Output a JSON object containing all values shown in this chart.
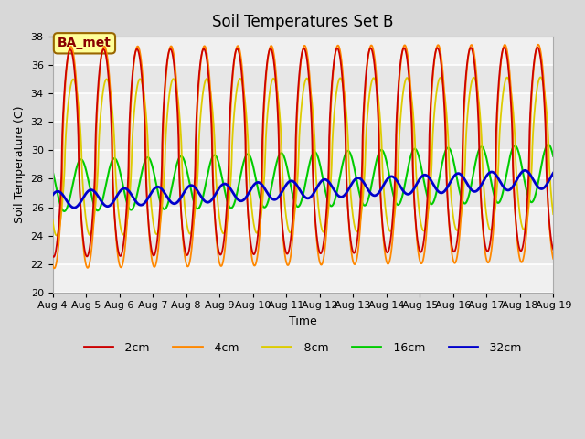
{
  "title": "Soil Temperatures Set B",
  "xlabel": "Time",
  "ylabel": "Soil Temperature (C)",
  "ylim": [
    20,
    38
  ],
  "xlim": [
    0,
    15
  ],
  "x_tick_labels": [
    "Aug 4",
    "Aug 5",
    "Aug 6",
    "Aug 7",
    "Aug 8",
    "Aug 9",
    "Aug 10",
    "Aug 11",
    "Aug 12",
    "Aug 13",
    "Aug 14",
    "Aug 15",
    "Aug 16",
    "Aug 17",
    "Aug 18",
    "Aug 19"
  ],
  "legend_labels": [
    "-2cm",
    "-4cm",
    "-8cm",
    "-16cm",
    "-32cm"
  ],
  "line_colors": [
    "#cc0000",
    "#ff8800",
    "#ddcc00",
    "#00cc00",
    "#0000cc"
  ],
  "background_color": "#d8d8d8",
  "plot_bg_color": "#f0f0f0",
  "grid_color": "#ffffff",
  "annotation_text": "BA_met",
  "annotation_bg": "#ffff99",
  "annotation_border": "#996600",
  "title_fontsize": 12,
  "axis_fontsize": 9,
  "tick_fontsize": 8,
  "legend_fontsize": 9
}
